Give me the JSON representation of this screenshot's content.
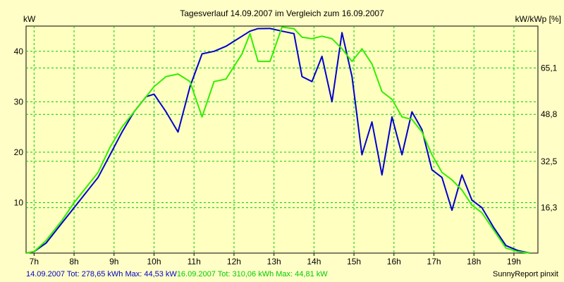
{
  "chart_data": {
    "type": "line",
    "title": "Tagesverlauf 14.09.2007 im Vergleich zum 16.09.2007",
    "ylabel": "kW",
    "y2label": "kW/kWp [%]",
    "xlim": [
      6.8,
      19.6
    ],
    "ylim": [
      0,
      45
    ],
    "x_ticks": [
      7,
      8,
      9,
      10,
      11,
      12,
      13,
      14,
      15,
      16,
      17,
      18,
      19
    ],
    "x_tick_labels": [
      "7h",
      "8h",
      "9h",
      "10h",
      "11h",
      "12h",
      "13h",
      "14h",
      "15h",
      "16h",
      "17h",
      "18h",
      "19h"
    ],
    "y_ticks": [
      10,
      20,
      30,
      40
    ],
    "y_tick_labels": [
      "10",
      "20",
      "30",
      "40"
    ],
    "y2_ticks": [
      9,
      18.2,
      27.5,
      36.7
    ],
    "y2_tick_labels": [
      "16,3",
      "32,5",
      "48,8",
      "65,1"
    ],
    "grid": true,
    "background": "#ffffc0",
    "grid_color": "#00cc00",
    "series": [
      {
        "color": "#0000cc",
        "x": [
          6.8,
          7.0,
          7.3,
          7.7,
          8.0,
          8.3,
          8.6,
          8.9,
          9.2,
          9.5,
          9.8,
          10.0,
          10.3,
          10.6,
          10.9,
          11.2,
          11.5,
          11.8,
          12.0,
          12.2,
          12.4,
          12.6,
          12.9,
          13.2,
          13.5,
          13.7,
          13.95,
          14.2,
          14.45,
          14.7,
          14.95,
          15.2,
          15.45,
          15.7,
          15.95,
          16.2,
          16.45,
          16.7,
          16.95,
          17.2,
          17.45,
          17.7,
          17.95,
          18.2,
          18.5,
          18.8,
          19.1,
          19.4
        ],
        "y": [
          0,
          0.3,
          2,
          6,
          9,
          12,
          15,
          19.5,
          24,
          28,
          31,
          31.5,
          28,
          24,
          33,
          39.5,
          40,
          41,
          42,
          43,
          44,
          44.5,
          44.53,
          44,
          43.5,
          35,
          34,
          39,
          30,
          43.7,
          35,
          19.5,
          26,
          15.5,
          27,
          19.5,
          28,
          24.5,
          16.5,
          15,
          8.5,
          15.5,
          10.5,
          9,
          5,
          1.5,
          0.5,
          0
        ]
      },
      {
        "color": "#33ee00",
        "x": [
          6.8,
          7.0,
          7.3,
          7.7,
          8.0,
          8.3,
          8.6,
          8.9,
          9.2,
          9.5,
          9.8,
          10.0,
          10.3,
          10.6,
          10.9,
          11.2,
          11.5,
          11.8,
          12.0,
          12.2,
          12.4,
          12.6,
          12.9,
          13.2,
          13.5,
          13.7,
          13.95,
          14.2,
          14.45,
          14.7,
          14.95,
          15.2,
          15.45,
          15.7,
          15.95,
          16.2,
          16.45,
          16.7,
          16.95,
          17.2,
          17.45,
          17.7,
          17.95,
          18.2,
          18.5,
          18.8,
          19.1,
          19.4
        ],
        "y": [
          0,
          0.3,
          2.5,
          6.5,
          10,
          13,
          16,
          21,
          25,
          28,
          31,
          33,
          35,
          35.5,
          34,
          27,
          34,
          34.5,
          37,
          39.5,
          43.5,
          38,
          38,
          44.81,
          44.5,
          42.8,
          42.5,
          43,
          42.5,
          40.5,
          38,
          40.5,
          37.5,
          32,
          30.5,
          27,
          26.5,
          24,
          19.5,
          16,
          14.5,
          12.5,
          9.5,
          8,
          4.5,
          1,
          0.3,
          0
        ]
      }
    ],
    "legend": [
      {
        "text": "14.09.2007 Tot: 278,65 kWh Max: 44,53 kW",
        "color": "#0000cc"
      },
      {
        "text": "16.09.2007 Tot: 310,06 kWh Max: 44,81 kW",
        "color": "#00cc00"
      }
    ],
    "credit": "SunnyReport pinxit"
  }
}
